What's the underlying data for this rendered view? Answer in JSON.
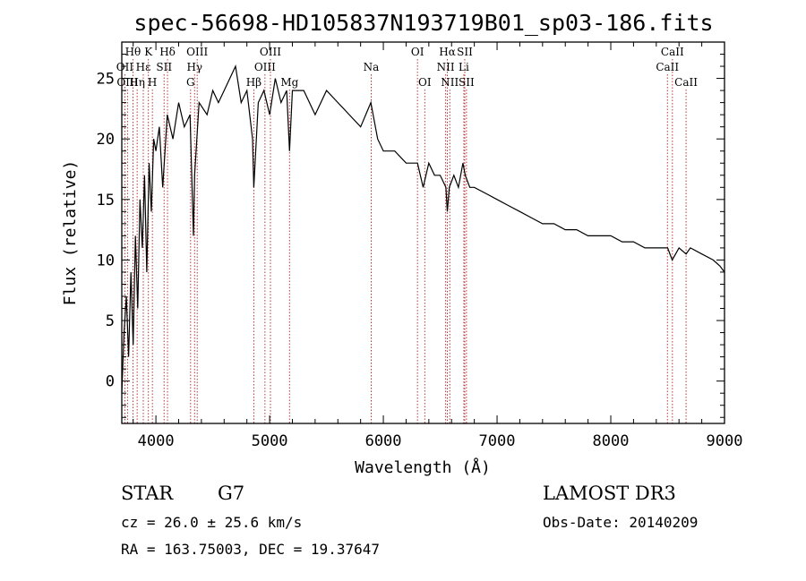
{
  "chart_data": {
    "type": "line",
    "title": "spec-56698-HD105837N193719B01_sp03-186.fits",
    "xlabel": "Wavelength (Å)",
    "ylabel": "Flux (relative)",
    "xlim": [
      3700,
      9000
    ],
    "ylim": [
      -3.5,
      28
    ],
    "xticks": [
      4000,
      5000,
      6000,
      7000,
      8000,
      9000
    ],
    "yticks": [
      0,
      5,
      10,
      15,
      20,
      25
    ],
    "series": [
      {
        "name": "spectrum",
        "x": [
          3700,
          3720,
          3740,
          3760,
          3780,
          3800,
          3820,
          3840,
          3860,
          3880,
          3900,
          3920,
          3940,
          3960,
          3980,
          4000,
          4030,
          4060,
          4100,
          4150,
          4200,
          4250,
          4300,
          4330,
          4340,
          4380,
          4450,
          4500,
          4550,
          4600,
          4650,
          4700,
          4750,
          4800,
          4850,
          4861,
          4900,
          4950,
          5000,
          5050,
          5100,
          5150,
          5175,
          5200,
          5300,
          5400,
          5500,
          5600,
          5700,
          5800,
          5890,
          5950,
          6000,
          6100,
          6200,
          6300,
          6350,
          6400,
          6450,
          6500,
          6550,
          6563,
          6580,
          6620,
          6660,
          6700,
          6720,
          6760,
          6800,
          6900,
          7000,
          7100,
          7200,
          7300,
          7400,
          7500,
          7600,
          7700,
          7800,
          7900,
          8000,
          8100,
          8200,
          8300,
          8400,
          8500,
          8540,
          8600,
          8662,
          8700,
          8800,
          8900,
          8960,
          9000
        ],
        "y": [
          -1,
          4,
          7,
          2,
          9,
          3,
          12,
          6,
          15,
          11,
          17,
          9,
          18,
          14,
          20,
          19,
          21,
          16,
          22,
          20,
          23,
          21,
          22,
          12,
          17,
          23,
          22,
          24,
          23,
          24,
          25,
          26,
          23,
          24,
          20,
          16,
          23,
          24,
          22,
          25,
          23,
          24,
          19,
          24,
          24,
          22,
          24,
          23,
          22,
          21,
          23,
          20,
          19,
          19,
          18,
          18,
          16,
          18,
          17,
          17,
          16,
          14,
          16,
          17,
          16,
          18,
          17,
          16,
          16,
          15.5,
          15,
          14.5,
          14,
          13.5,
          13,
          13,
          12.5,
          12.5,
          12,
          12,
          12,
          11.5,
          11.5,
          11,
          11,
          11,
          10,
          11,
          10.5,
          11,
          10.5,
          10,
          9.5,
          9
        ]
      }
    ],
    "emission_lines": [
      {
        "label": "Hθ",
        "wavelength": 3798,
        "row": 1
      },
      {
        "label": "OII",
        "wavelength": 3727,
        "row": 2
      },
      {
        "label": "OIII",
        "wavelength": 3750,
        "row": 3
      },
      {
        "label": "Hη",
        "wavelength": 3835,
        "row": 3
      },
      {
        "label": "K",
        "wavelength": 3934,
        "row": 1
      },
      {
        "label": "Hε",
        "wavelength": 3889,
        "row": 2
      },
      {
        "label": "H",
        "wavelength": 3969,
        "row": 3
      },
      {
        "label": "Hδ",
        "wavelength": 4102,
        "row": 1
      },
      {
        "label": "SII",
        "wavelength": 4072,
        "row": 2
      },
      {
        "label": "OIII",
        "wavelength": 4363,
        "row": 1
      },
      {
        "label": "Hγ",
        "wavelength": 4340,
        "row": 2
      },
      {
        "label": "G",
        "wavelength": 4305,
        "row": 3
      },
      {
        "label": "OIII",
        "wavelength": 5007,
        "row": 1
      },
      {
        "label": "OIII",
        "wavelength": 4959,
        "row": 2
      },
      {
        "label": "Hβ",
        "wavelength": 4861,
        "row": 3
      },
      {
        "label": "Mg",
        "wavelength": 5175,
        "row": 3
      },
      {
        "label": "Na",
        "wavelength": 5893,
        "row": 2
      },
      {
        "label": "OI",
        "wavelength": 6300,
        "row": 1
      },
      {
        "label": "OI",
        "wavelength": 6364,
        "row": 3
      },
      {
        "label": "Hα",
        "wavelength": 6563,
        "row": 1
      },
      {
        "label": "SII",
        "wavelength": 6716,
        "row": 1
      },
      {
        "label": "NII",
        "wavelength": 6548,
        "row": 2
      },
      {
        "label": "Li",
        "wavelength": 6708,
        "row": 2
      },
      {
        "label": "NII",
        "wavelength": 6584,
        "row": 3
      },
      {
        "label": "SII",
        "wavelength": 6731,
        "row": 3
      },
      {
        "label": "CaII",
        "wavelength": 8542,
        "row": 1
      },
      {
        "label": "CaII",
        "wavelength": 8498,
        "row": 2
      },
      {
        "label": "CaII",
        "wavelength": 8662,
        "row": 3
      }
    ]
  },
  "info": {
    "object_class": "STAR",
    "subclass": "G7",
    "survey": "LAMOST DR3",
    "cz": "cz = 26.0 ± 25.6 km/s",
    "obs_date": "Obs-Date: 20140209",
    "coords": "RA = 163.75003, DEC =  19.37647"
  },
  "colors": {
    "spectrum": "#000000",
    "line_marker": "#b22222",
    "axes": "#000000"
  }
}
